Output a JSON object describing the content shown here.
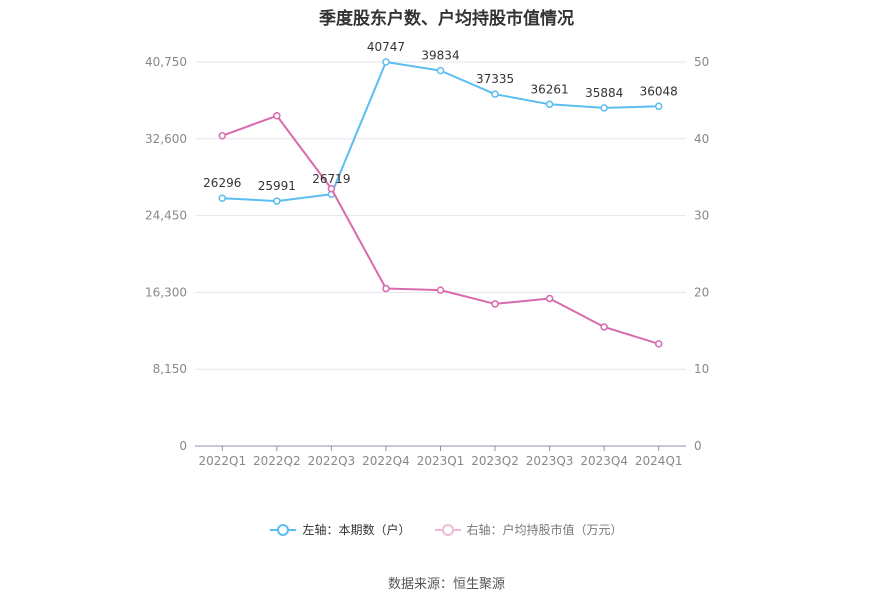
{
  "title": "季度股东户数、户均持股市值情况",
  "source": "数据来源：恒生聚源",
  "colors": {
    "left_series": "#5bbdf0",
    "right_series": "#d96aae"
  },
  "chart_data": {
    "type": "line",
    "categories": [
      "2022Q1",
      "2022Q2",
      "2022Q3",
      "2022Q4",
      "2023Q1",
      "2023Q2",
      "2023Q3",
      "2023Q4",
      "2024Q1"
    ],
    "series": [
      {
        "name": "左轴：本期数（户）",
        "axis": "left",
        "values": [
          26296,
          25991,
          26719,
          40747,
          39834,
          37335,
          36261,
          35884,
          36048
        ],
        "labels": [
          "26296",
          "25991",
          "26719",
          "40747",
          "39834",
          "37335",
          "36261",
          "35884",
          "36048"
        ]
      },
      {
        "name": "右轴：户均持股市值（万元）",
        "axis": "right",
        "values": [
          40.4,
          43.0,
          33.5,
          20.5,
          20.3,
          18.5,
          19.2,
          15.5,
          13.3
        ]
      }
    ],
    "y_left": {
      "ticks": [
        "0",
        "8,150",
        "16,300",
        "24,450",
        "32,600",
        "40,750"
      ],
      "ylim": [
        0,
        40750
      ]
    },
    "y_right": {
      "ticks": [
        "0",
        "10",
        "20",
        "30",
        "40",
        "50"
      ],
      "ylim": [
        0,
        50
      ]
    },
    "grid": true,
    "legend": "bottom"
  }
}
